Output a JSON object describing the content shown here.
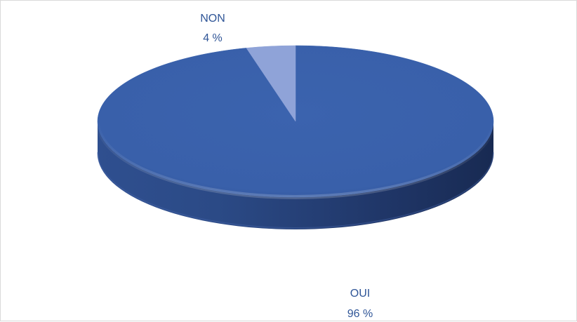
{
  "chart_data": {
    "type": "pie",
    "categories": [
      "OUI",
      "NON"
    ],
    "values": [
      96,
      4
    ],
    "value_labels": [
      "96 %",
      "4 %"
    ],
    "colors": [
      "#3a62ad",
      "#8fa3d8"
    ],
    "title": "",
    "style": "3d",
    "legend": "none"
  }
}
